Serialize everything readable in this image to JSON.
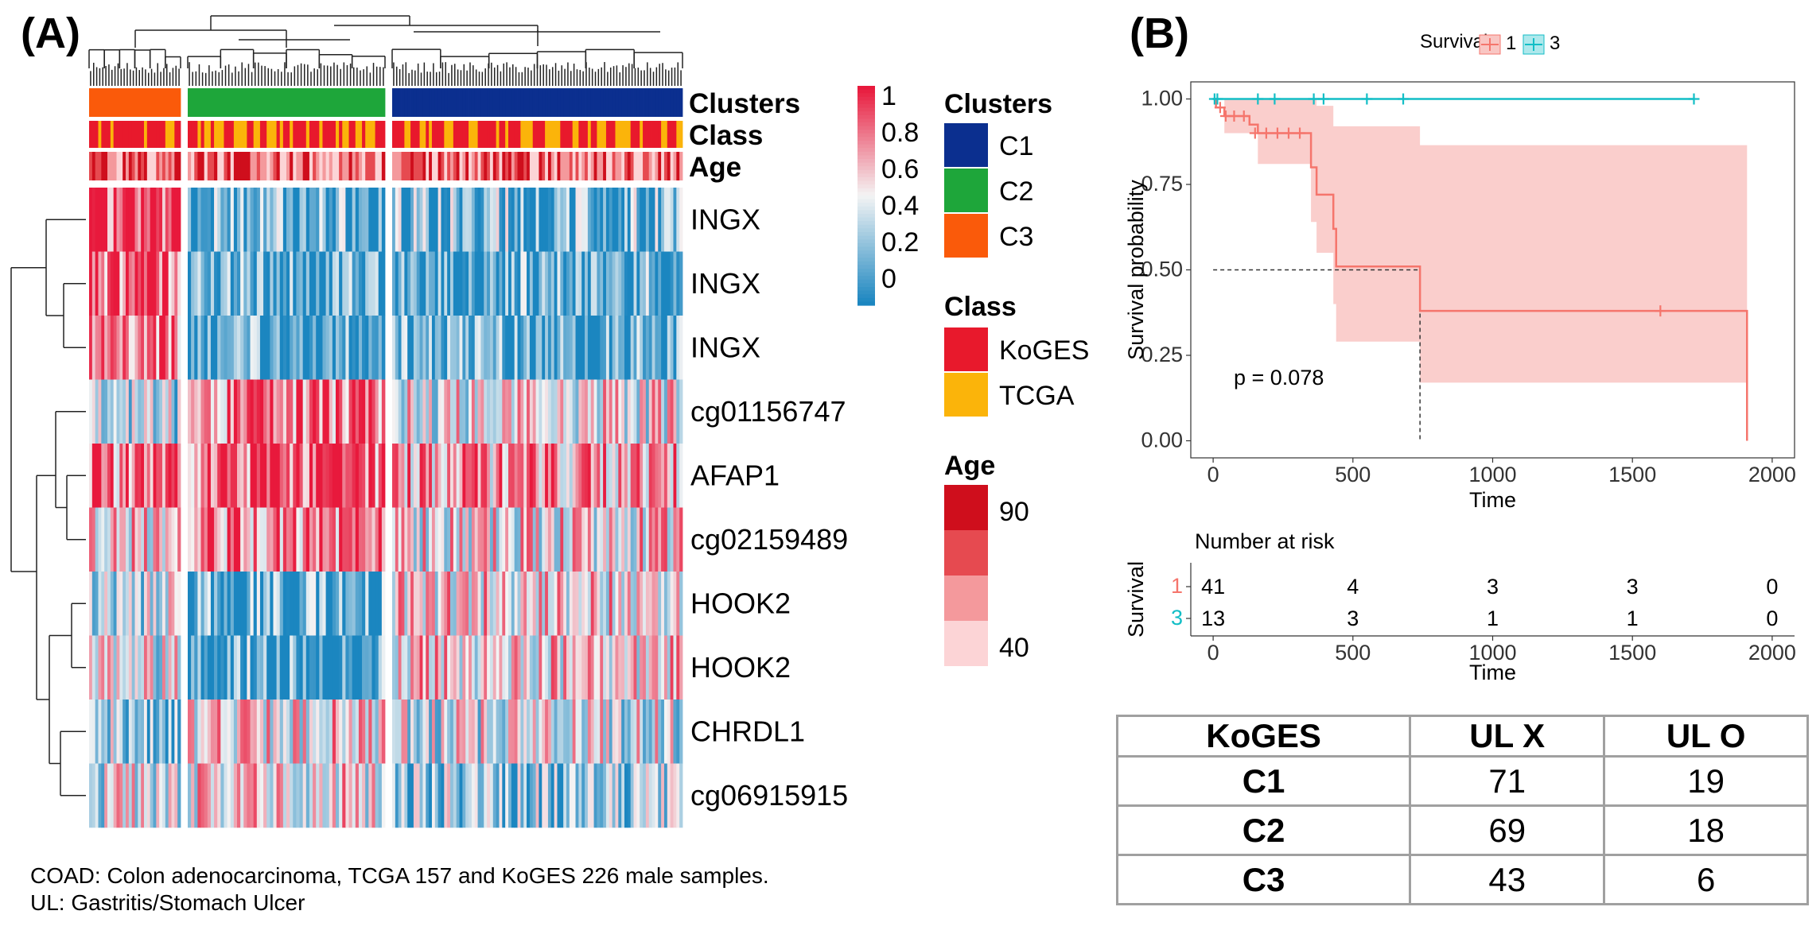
{
  "panel_a_label": "(A)",
  "panel_b_label": "(B)",
  "footnote_line1": "COAD: Colon adenocarcinoma, TCGA 157 and KoGES 226 male samples.",
  "footnote_line2": "UL: Gastritis/Stomach Ulcer",
  "colors": {
    "high": "#e8193c",
    "mid": "#f4f4f4",
    "low": "#1b86c0",
    "C1": "#0b2f8f",
    "C2": "#1ea63a",
    "C3": "#fa5a0a",
    "KoGES": "#e8192c",
    "TCGA": "#fbb40a",
    "age1": "#cf0e1c",
    "age2": "#e64a50",
    "age3": "#f4999c",
    "age4": "#fcd4d6",
    "km_group1": "#f5756c",
    "km_group3": "#12bec6",
    "km_band1": "#f9c6c3"
  },
  "chart_data": [
    {
      "type": "heatmap",
      "title": "(A)",
      "annotation_rows": [
        "Clusters",
        "Class",
        "Age"
      ],
      "row_labels": [
        "INGX",
        "INGX",
        "INGX",
        "cg01156747",
        "AFAP1",
        "cg02159489",
        "HOOK2",
        "HOOK2",
        "CHRDL1",
        "cg06915915"
      ],
      "column_clusters": [
        "C3",
        "C2",
        "C1"
      ],
      "color_scale": {
        "title": "",
        "ticks": [
          "1",
          "0.8",
          "0.6",
          "0.4",
          "0.2",
          "0"
        ],
        "range": [
          0,
          1
        ]
      },
      "legends": {
        "clusters": {
          "title": "Clusters",
          "items": [
            "C1",
            "C2",
            "C3"
          ]
        },
        "class": {
          "title": "Class",
          "items": [
            "KoGES",
            "TCGA"
          ]
        },
        "age": {
          "title": "Age",
          "labels": [
            "90",
            "40"
          ],
          "range": [
            40,
            90
          ]
        }
      },
      "row_tendency": {
        "C3": [
          0.92,
          0.88,
          0.82,
          0.35,
          0.78,
          0.55,
          0.4,
          0.45,
          0.3,
          0.45
        ],
        "C2": [
          0.18,
          0.12,
          0.12,
          0.8,
          0.85,
          0.78,
          0.15,
          0.15,
          0.55,
          0.55
        ],
        "C1": [
          0.22,
          0.14,
          0.14,
          0.5,
          0.7,
          0.55,
          0.55,
          0.58,
          0.45,
          0.3
        ]
      }
    },
    {
      "type": "line",
      "title": "(B)",
      "legend_title": "Survival",
      "series": [
        {
          "name": "1",
          "steps": [
            [
              0,
              1.0
            ],
            [
              10,
              0.975
            ],
            [
              40,
              0.95
            ],
            [
              130,
              0.925
            ],
            [
              160,
              0.9
            ],
            [
              350,
              0.8
            ],
            [
              370,
              0.72
            ],
            [
              430,
              0.62
            ],
            [
              440,
              0.51
            ],
            [
              740,
              0.38
            ],
            [
              1910,
              0.0
            ]
          ],
          "censor": [
            [
              25,
              0.975
            ],
            [
              45,
              0.95
            ],
            [
              75,
              0.95
            ],
            [
              110,
              0.95
            ],
            [
              150,
              0.9
            ],
            [
              190,
              0.9
            ],
            [
              230,
              0.9
            ],
            [
              270,
              0.9
            ],
            [
              310,
              0.9
            ],
            [
              1600,
              0.38
            ]
          ],
          "ci_band": [
            [
              0,
              1.0,
              1.0
            ],
            [
              40,
              0.9,
              1.0
            ],
            [
              160,
              0.81,
              1.0
            ],
            [
              350,
              0.64,
              1.0
            ],
            [
              370,
              0.55,
              0.98
            ],
            [
              430,
              0.4,
              0.92
            ],
            [
              440,
              0.29,
              0.92
            ],
            [
              740,
              0.17,
              0.865
            ],
            [
              1910,
              0.17,
              0.865
            ]
          ]
        },
        {
          "name": "3",
          "steps": [
            [
              0,
              1.0
            ],
            [
              1720,
              1.0
            ]
          ],
          "censor": [
            [
              5,
              1.0
            ],
            [
              15,
              1.0
            ],
            [
              160,
              1.0
            ],
            [
              220,
              1.0
            ],
            [
              360,
              1.0
            ],
            [
              395,
              1.0
            ],
            [
              550,
              1.0
            ],
            [
              680,
              1.0
            ],
            [
              1720,
              1.0
            ]
          ]
        }
      ],
      "median_line": {
        "y": 0.5,
        "x": 740
      },
      "annotation": "p = 0.078",
      "xlabel": "Time",
      "ylabel": "Survival probability",
      "xlim": [
        -80,
        2080
      ],
      "ylim": [
        -0.05,
        1.05
      ],
      "xticks": [
        "0",
        "500",
        "1000",
        "1500",
        "2000"
      ],
      "yticks": [
        "0.00",
        "0.25",
        "0.50",
        "0.75",
        "1.00"
      ]
    },
    {
      "type": "table",
      "title": "Number at risk",
      "row_axis_label": "Survival",
      "row_names": [
        "1",
        "3"
      ],
      "time_points": [
        "0",
        "500",
        "1000",
        "1500",
        "2000"
      ],
      "rows": [
        [
          "41",
          "4",
          "3",
          "3",
          "0"
        ],
        [
          "13",
          "3",
          "1",
          "1",
          "0"
        ]
      ],
      "xlabel": "Time"
    },
    {
      "type": "table",
      "headers": [
        "KoGES",
        "UL X",
        "UL O"
      ],
      "rows": [
        [
          "C1",
          "71",
          "19"
        ],
        [
          "C2",
          "69",
          "18"
        ],
        [
          "C3",
          "43",
          "6"
        ]
      ]
    }
  ]
}
